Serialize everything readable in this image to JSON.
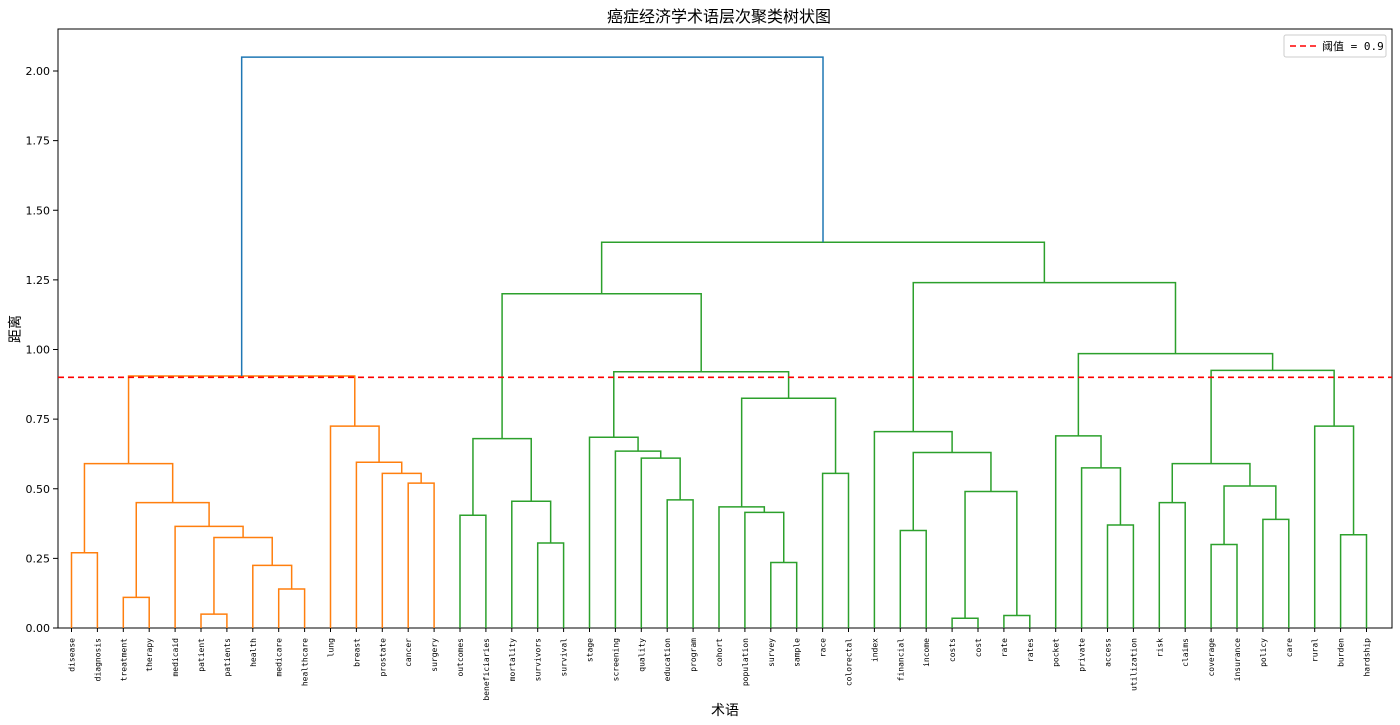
{
  "chart_data": {
    "type": "dendrogram",
    "title": "癌症经济学术语层次聚类树状图",
    "xlabel": "术语",
    "ylabel": "距离",
    "ylim": [
      0,
      2.15
    ],
    "yticks": [
      "0.00",
      "0.25",
      "0.50",
      "0.75",
      "1.00",
      "1.25",
      "1.50",
      "1.75",
      "2.00"
    ],
    "ytick_values": [
      0,
      0.25,
      0.5,
      0.75,
      1.0,
      1.25,
      1.5,
      1.75,
      2.0
    ],
    "threshold": 0.9,
    "legend": {
      "label": "阈值 = 0.9",
      "placement": "top-right"
    },
    "colors": {
      "cluster1": "#ff7f0e",
      "cluster2": "#2ca02c",
      "root": "#1f77b4",
      "threshold": "#ff0000"
    },
    "leaves": [
      "disease",
      "diagnosis",
      "treatment",
      "therapy",
      "medicaid",
      "patient",
      "patients",
      "health",
      "medicare",
      "healthcare",
      "lung",
      "breast",
      "prostate",
      "cancer",
      "surgery",
      "outcomes",
      "beneficiaries",
      "mortality",
      "survivors",
      "survival",
      "stage",
      "screening",
      "quality",
      "education",
      "program",
      "cohort",
      "population",
      "survey",
      "sample",
      "race",
      "colorectal",
      "index",
      "financial",
      "income",
      "costs",
      "cost",
      "rate",
      "rates",
      "pocket",
      "private",
      "access",
      "utilization",
      "risk",
      "claims",
      "coverage",
      "insurance",
      "policy",
      "care",
      "rural",
      "burden",
      "hardship"
    ],
    "merges": [
      {
        "a": "L5",
        "b": "L6",
        "h": 0.05,
        "c": "cluster1"
      },
      {
        "a": "L8",
        "b": "L9",
        "h": 0.14,
        "c": "cluster1"
      },
      {
        "a": "L7",
        "b": "N1",
        "h": 0.225,
        "c": "cluster1"
      },
      {
        "a": "N0",
        "b": "N2",
        "h": 0.325,
        "c": "cluster1"
      },
      {
        "a": "L4",
        "b": "N3",
        "h": 0.365,
        "c": "cluster1"
      },
      {
        "a": "L2",
        "b": "L3",
        "h": 0.11,
        "c": "cluster1"
      },
      {
        "a": "N5",
        "b": "N4",
        "h": 0.45,
        "c": "cluster1"
      },
      {
        "a": "L0",
        "b": "L1",
        "h": 0.27,
        "c": "cluster1"
      },
      {
        "a": "N7",
        "b": "N6",
        "h": 0.59,
        "c": "cluster1"
      },
      {
        "a": "L13",
        "b": "L14",
        "h": 0.52,
        "c": "cluster1"
      },
      {
        "a": "L12",
        "b": "N9",
        "h": 0.555,
        "c": "cluster1"
      },
      {
        "a": "L11",
        "b": "N10",
        "h": 0.595,
        "c": "cluster1"
      },
      {
        "a": "L10",
        "b": "N11",
        "h": 0.725,
        "c": "cluster1"
      },
      {
        "a": "N8",
        "b": "N12",
        "h": 0.905,
        "c": "cluster1"
      },
      {
        "a": "L15",
        "b": "L16",
        "h": 0.405,
        "c": "cluster2"
      },
      {
        "a": "L18",
        "b": "L19",
        "h": 0.305,
        "c": "cluster2"
      },
      {
        "a": "L17",
        "b": "N15",
        "h": 0.455,
        "c": "cluster2"
      },
      {
        "a": "N14",
        "b": "N16",
        "h": 0.68,
        "c": "cluster2"
      },
      {
        "a": "L23",
        "b": "L24",
        "h": 0.46,
        "c": "cluster2"
      },
      {
        "a": "L22",
        "b": "N18",
        "h": 0.61,
        "c": "cluster2"
      },
      {
        "a": "L21",
        "b": "N19",
        "h": 0.635,
        "c": "cluster2"
      },
      {
        "a": "L20",
        "b": "N20",
        "h": 0.685,
        "c": "cluster2"
      },
      {
        "a": "L27",
        "b": "L28",
        "h": 0.235,
        "c": "cluster2"
      },
      {
        "a": "L26",
        "b": "N22",
        "h": 0.415,
        "c": "cluster2"
      },
      {
        "a": "L25",
        "b": "N23",
        "h": 0.435,
        "c": "cluster2"
      },
      {
        "a": "L29",
        "b": "L30",
        "h": 0.555,
        "c": "cluster2"
      },
      {
        "a": "N24",
        "b": "N25",
        "h": 0.825,
        "c": "cluster2"
      },
      {
        "a": "N21",
        "b": "N26",
        "h": 0.92,
        "c": "cluster2"
      },
      {
        "a": "N17",
        "b": "N27",
        "h": 1.2,
        "c": "cluster2"
      },
      {
        "a": "L32",
        "b": "L33",
        "h": 0.35,
        "c": "cluster2"
      },
      {
        "a": "L34",
        "b": "L35",
        "h": 0.035,
        "c": "cluster2"
      },
      {
        "a": "L36",
        "b": "L37",
        "h": 0.045,
        "c": "cluster2"
      },
      {
        "a": "N30",
        "b": "N31",
        "h": 0.49,
        "c": "cluster2"
      },
      {
        "a": "N29",
        "b": "N32",
        "h": 0.63,
        "c": "cluster2"
      },
      {
        "a": "L31",
        "b": "N33",
        "h": 0.705,
        "c": "cluster2"
      },
      {
        "a": "L40",
        "b": "L41",
        "h": 0.37,
        "c": "cluster2"
      },
      {
        "a": "L39",
        "b": "N35",
        "h": 0.575,
        "c": "cluster2"
      },
      {
        "a": "L38",
        "b": "N36",
        "h": 0.69,
        "c": "cluster2"
      },
      {
        "a": "L42",
        "b": "L43",
        "h": 0.45,
        "c": "cluster2"
      },
      {
        "a": "L44",
        "b": "L45",
        "h": 0.3,
        "c": "cluster2"
      },
      {
        "a": "L46",
        "b": "L47",
        "h": 0.39,
        "c": "cluster2"
      },
      {
        "a": "N39",
        "b": "N40",
        "h": 0.51,
        "c": "cluster2"
      },
      {
        "a": "N38",
        "b": "N41",
        "h": 0.59,
        "c": "cluster2"
      },
      {
        "a": "L49",
        "b": "L50",
        "h": 0.335,
        "c": "cluster2"
      },
      {
        "a": "L48",
        "b": "N43",
        "h": 0.725,
        "c": "cluster2"
      },
      {
        "a": "N42",
        "b": "N44",
        "h": 0.925,
        "c": "cluster2"
      },
      {
        "a": "N37",
        "b": "N45",
        "h": 0.985,
        "c": "cluster2"
      },
      {
        "a": "N34",
        "b": "N46",
        "h": 1.24,
        "c": "cluster2"
      },
      {
        "a": "N28",
        "b": "N47",
        "h": 1.385,
        "c": "cluster2"
      },
      {
        "a": "N13",
        "b": "N48",
        "h": 2.05,
        "c": "root"
      }
    ]
  }
}
